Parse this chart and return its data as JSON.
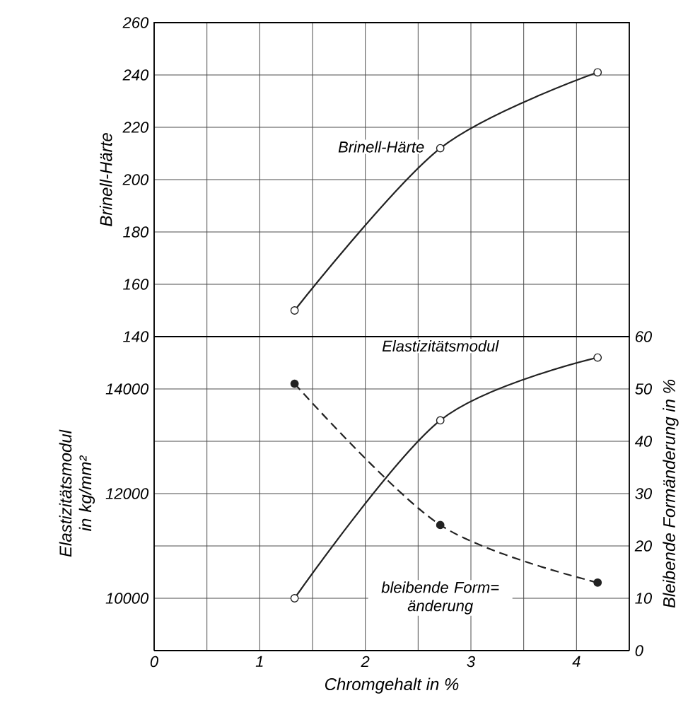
{
  "chart_data": [
    {
      "type": "line",
      "ylabel": "Brinell-Härte",
      "x": [
        1.33,
        2.71,
        4.2
      ],
      "xlim": [
        0,
        4.5
      ],
      "xticks": [
        0,
        {
          "value": 0.5,
          "label": null
        },
        1,
        {
          "value": 1.5,
          "label": null
        },
        2,
        {
          "value": 2.5,
          "label": null
        },
        3,
        {
          "value": 3.5,
          "label": null
        },
        4
      ],
      "ylim": [
        140,
        260
      ],
      "yticks": [
        140,
        160,
        180,
        200,
        220,
        240,
        260
      ],
      "tick_labels": "y",
      "grid": true,
      "marker": "circle",
      "series": [
        {
          "name": "Brinell-Härte",
          "color": "#222222",
          "line_style": "solid",
          "values": [
            150,
            212,
            241
          ]
        }
      ]
    },
    {
      "type": "line",
      "xlabel": "Chromgehalt in %",
      "ylabel": "Elastizitätsmodul in kg/mm²",
      "y2label": "Bleibende Formänderung in %",
      "x": [
        1.33,
        2.71,
        4.2
      ],
      "xlim": [
        0,
        4.5
      ],
      "xticks": [
        0,
        {
          "value": 0.5,
          "label": null
        },
        1,
        {
          "value": 1.5,
          "label": null
        },
        2,
        {
          "value": 2.5,
          "label": null
        },
        3,
        {
          "value": 3.5,
          "label": null
        },
        4
      ],
      "ylim": [
        9000,
        15000
      ],
      "yticks": [
        10000,
        {
          "value": 11000,
          "label": null
        },
        12000,
        {
          "value": 13000,
          "label": null
        },
        14000
      ],
      "y2lim": [
        0,
        60
      ],
      "y2ticks": [
        0,
        10,
        20,
        30,
        40,
        50,
        60
      ],
      "grid": true,
      "marker": "circle",
      "series": [
        {
          "name": "Elastizitätsmodul",
          "color": "#222222",
          "line_style": "solid",
          "values": [
            10000,
            13400,
            14600
          ]
        },
        {
          "name": "bleibende Form= änderung",
          "color": "#222222",
          "line_style": "dashed",
          "axis": "y2",
          "values": [
            51,
            24,
            13
          ]
        }
      ]
    }
  ]
}
